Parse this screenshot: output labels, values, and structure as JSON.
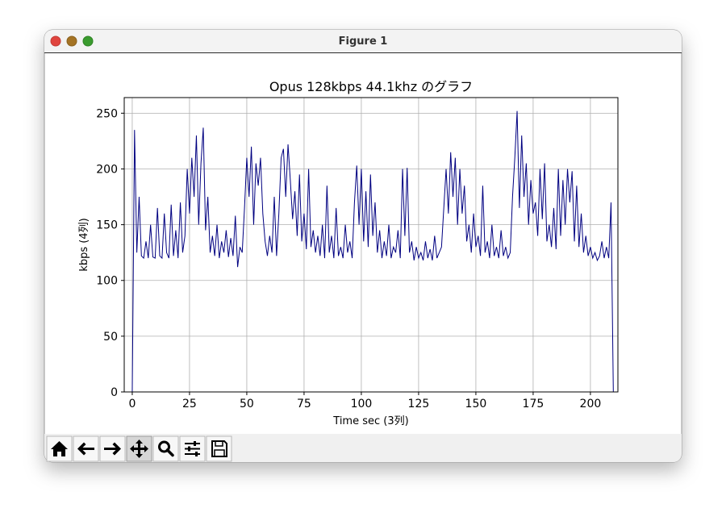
{
  "window": {
    "title": "Figure 1"
  },
  "chart_data": {
    "type": "line",
    "title": "Opus 128kbps 44.1khz のグラフ",
    "xlabel": "Time sec (3列)",
    "ylabel": "kbps (4列)",
    "grid": true,
    "xlim": [
      -3.5,
      212
    ],
    "ylim": [
      0,
      264
    ],
    "xticks": [
      0,
      25,
      50,
      75,
      100,
      125,
      150,
      175,
      200
    ],
    "yticks": [
      0,
      50,
      100,
      150,
      200,
      250
    ],
    "x": [
      0,
      1,
      2,
      3,
      4,
      5,
      6,
      7,
      8,
      9,
      10,
      11,
      12,
      13,
      14,
      15,
      16,
      17,
      18,
      19,
      20,
      21,
      22,
      23,
      24,
      25,
      26,
      27,
      28,
      29,
      30,
      31,
      32,
      33,
      34,
      35,
      36,
      37,
      38,
      39,
      40,
      41,
      42,
      43,
      44,
      45,
      46,
      47,
      48,
      49,
      50,
      51,
      52,
      53,
      54,
      55,
      56,
      57,
      58,
      59,
      60,
      61,
      62,
      63,
      64,
      65,
      66,
      67,
      68,
      69,
      70,
      71,
      72,
      73,
      74,
      75,
      76,
      77,
      78,
      79,
      80,
      81,
      82,
      83,
      84,
      85,
      86,
      87,
      88,
      89,
      90,
      91,
      92,
      93,
      94,
      95,
      96,
      97,
      98,
      99,
      100,
      101,
      102,
      103,
      104,
      105,
      106,
      107,
      108,
      109,
      110,
      111,
      112,
      113,
      114,
      115,
      116,
      117,
      118,
      119,
      120,
      121,
      122,
      123,
      124,
      125,
      126,
      127,
      128,
      129,
      130,
      131,
      132,
      133,
      134,
      135,
      136,
      137,
      138,
      139,
      140,
      141,
      142,
      143,
      144,
      145,
      146,
      147,
      148,
      149,
      150,
      151,
      152,
      153,
      154,
      155,
      156,
      157,
      158,
      159,
      160,
      161,
      162,
      163,
      164,
      165,
      166,
      167,
      168,
      169,
      170,
      171,
      172,
      173,
      174,
      175,
      176,
      177,
      178,
      179,
      180,
      181,
      182,
      183,
      184,
      185,
      186,
      187,
      188,
      189,
      190,
      191,
      192,
      193,
      194,
      195,
      196,
      197,
      198,
      199,
      200,
      201,
      202,
      203,
      204,
      205,
      206,
      207,
      208,
      209,
      210,
      211,
      212
    ],
    "series": [
      {
        "name": "kbps",
        "color": "#000080",
        "values": [
          0,
          235,
          125,
          175,
          122,
          120,
          135,
          120,
          150,
          121,
          120,
          165,
          122,
          120,
          160,
          125,
          120,
          168,
          122,
          145,
          120,
          170,
          125,
          140,
          200,
          160,
          210,
          175,
          230,
          150,
          205,
          237,
          145,
          175,
          125,
          140,
          122,
          150,
          120,
          135,
          125,
          145,
          121,
          138,
          122,
          158,
          112,
          130,
          125,
          165,
          210,
          175,
          220,
          150,
          205,
          185,
          210,
          160,
          135,
          122,
          140,
          125,
          175,
          122,
          160,
          210,
          218,
          175,
          222,
          190,
          155,
          180,
          140,
          195,
          135,
          160,
          128,
          200,
          130,
          145,
          125,
          140,
          122,
          150,
          120,
          185,
          125,
          140,
          120,
          165,
          122,
          130,
          120,
          150,
          125,
          135,
          120,
          170,
          203,
          150,
          200,
          135,
          180,
          130,
          195,
          140,
          170,
          125,
          145,
          120,
          135,
          122,
          150,
          120,
          130,
          125,
          145,
          120,
          200,
          140,
          201,
          125,
          135,
          118,
          130,
          120,
          125,
          118,
          135,
          120,
          128,
          118,
          140,
          120,
          125,
          130,
          165,
          200,
          160,
          215,
          175,
          210,
          150,
          200,
          160,
          185,
          135,
          150,
          125,
          160,
          130,
          140,
          122,
          185,
          125,
          135,
          120,
          150,
          122,
          130,
          120,
          145,
          122,
          130,
          120,
          125,
          175,
          210,
          252,
          165,
          230,
          175,
          205,
          150,
          190,
          160,
          170,
          140,
          200,
          155,
          205,
          135,
          150,
          130,
          165,
          128,
          200,
          140,
          190,
          150,
          200,
          170,
          198,
          135,
          185,
          130,
          160,
          125,
          140,
          122,
          130,
          120,
          125,
          118,
          122,
          135,
          120,
          130,
          120,
          170,
          0,
          0,
          0
        ]
      }
    ]
  }
}
